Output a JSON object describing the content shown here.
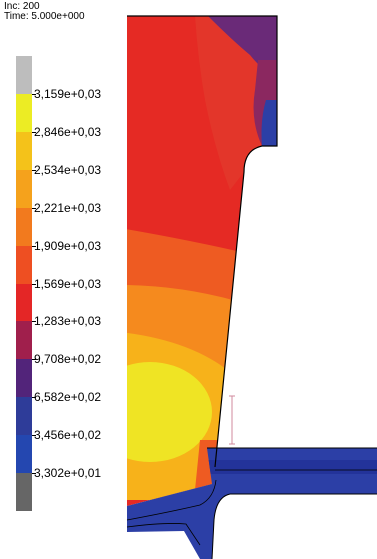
{
  "header": {
    "inc": "Inc: 200",
    "time": "Time: 5.000e+000"
  },
  "legend": {
    "colors": [
      "#bdbdbd",
      "#ecec24",
      "#f4c21a",
      "#f5a21c",
      "#f27a1e",
      "#ee4f22",
      "#e42626",
      "#a01f4c",
      "#52247a",
      "#2e3c99",
      "#2447b0",
      "#666666"
    ],
    "labels": [
      "3,159e+0,03",
      "2,846e+0,03",
      "2,534e+0,03",
      "2,221e+0,03",
      "1,909e+0,03",
      "1,569e+0,03",
      "1,283e+0,03",
      "9,708e+0,02",
      "6,582e+0,02",
      "3,456e+0,02",
      "3,302e+0,01"
    ]
  },
  "colors": {
    "red": "#e52a24",
    "orange_red": "#ee5b22",
    "orange": "#f58a1e",
    "amber": "#f7b21a",
    "yellow": "#efe424",
    "purple": "#6a2a78",
    "blue": "#2c3fa6",
    "dark_blue": "#23339a"
  }
}
